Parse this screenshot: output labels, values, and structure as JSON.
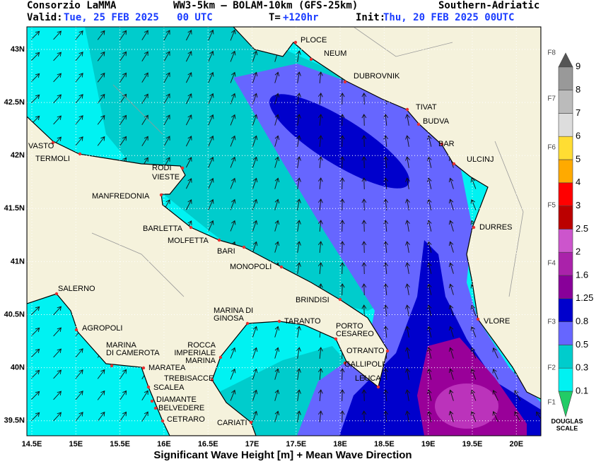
{
  "header": {
    "org": "Consorzio LaMMA",
    "model": "WW3-5km – BOLAM-10km (GFS-25km)",
    "region": "Southern-Adriatic",
    "valid_label": "Valid:",
    "valid": "Tue, 25 FEB 2025   00 UTC",
    "lead_label": "T=",
    "lead": "+120hr",
    "init_label": "Init:",
    "init": "Thu, 20 FEB 2025 00UTC"
  },
  "map": {
    "lat_ticks": [
      "43N",
      "42.5N",
      "42N",
      "41.5N",
      "41N",
      "40.5N",
      "40N",
      "39.5N"
    ],
    "lon_ticks": [
      "14.5E",
      "15E",
      "15.5E",
      "16E",
      "16.5E",
      "17E",
      "17.5E",
      "18E",
      "18.5E",
      "19E",
      "19.5E",
      "20E"
    ],
    "cities": [
      {
        "name": [
          "PLOCE"
        ]
      },
      {
        "name": [
          "NEUM"
        ]
      },
      {
        "name": [
          "DUBROVNIK"
        ]
      },
      {
        "name": [
          "TIVAT"
        ]
      },
      {
        "name": [
          "BUDVA"
        ]
      },
      {
        "name": [
          "BAR"
        ]
      },
      {
        "name": [
          "ULCINJ"
        ]
      },
      {
        "name": [
          "DURRES"
        ]
      },
      {
        "name": [
          "VLORE"
        ]
      },
      {
        "name": [
          "VASTO"
        ]
      },
      {
        "name": [
          "TERMOLI"
        ]
      },
      {
        "name": [
          "RODI"
        ]
      },
      {
        "name": [
          "VIESTE"
        ]
      },
      {
        "name": [
          "MANFREDONIA"
        ]
      },
      {
        "name": [
          "BARLETTA"
        ]
      },
      {
        "name": [
          "MOLFETTA"
        ]
      },
      {
        "name": [
          "BARI"
        ]
      },
      {
        "name": [
          "MONOPOLI"
        ]
      },
      {
        "name": [
          "BRINDISI"
        ]
      },
      {
        "name": [
          "SALERNO"
        ]
      },
      {
        "name": [
          "AGROPOLI"
        ]
      },
      {
        "name": [
          "MARINA",
          "DI CAMEROTA"
        ]
      },
      {
        "name": [
          "MARATEA"
        ]
      },
      {
        "name": [
          "ROCCA",
          "IMPERIALE",
          "MARINA"
        ]
      },
      {
        "name": [
          "TREBISACCE"
        ]
      },
      {
        "name": [
          "SCALEA"
        ]
      },
      {
        "name": [
          "DIAMANTE"
        ]
      },
      {
        "name": [
          "BELVEDERE"
        ]
      },
      {
        "name": [
          "CETRARO"
        ]
      },
      {
        "name": [
          "CARIATI"
        ]
      },
      {
        "name": [
          "MARINA DI",
          "GINOSA"
        ]
      },
      {
        "name": [
          "TARANTO"
        ]
      },
      {
        "name": [
          "PORTO",
          "CESAREO"
        ]
      },
      {
        "name": [
          "OTRANTO"
        ]
      },
      {
        "name": [
          "GALLIPOLI"
        ]
      },
      {
        "name": [
          "LEUCA"
        ]
      }
    ]
  },
  "legend": {
    "levels": [
      "0.1",
      "0.3",
      "0.5",
      "0.8",
      "1.25",
      "1.6",
      "2",
      "2.5",
      "3",
      "4",
      "5",
      "6",
      "7",
      "8",
      "9"
    ],
    "douglas": [
      "F1",
      "F2",
      "F3",
      "F4",
      "F5",
      "F6",
      "F7",
      "F8"
    ],
    "scale_title": [
      "DOUGLAS",
      "SCALE"
    ]
  },
  "footer": "Significant Wave Height [m] + Mean Wave Direction"
}
